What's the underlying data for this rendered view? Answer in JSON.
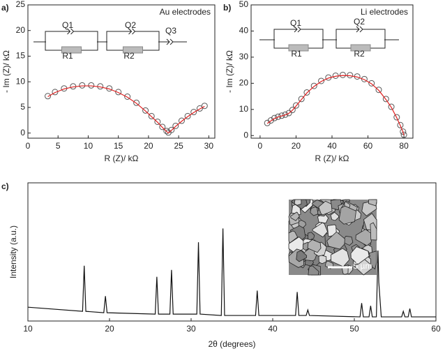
{
  "chart_data": [
    {
      "type": "scatter",
      "panel_label": "a)",
      "annotation": "Au electrodes",
      "xlabel": "R (Z)/ kΩ",
      "ylabel": "- Im (Z)/ kΩ",
      "xlim": [
        0,
        31
      ],
      "ylim": [
        -1,
        25
      ],
      "xticks": [
        0,
        5,
        10,
        15,
        20,
        25,
        30
      ],
      "yticks": [
        0,
        5,
        10,
        15,
        20,
        25
      ],
      "circuit": [
        "Q1",
        "Q2",
        "Q3",
        "R1",
        "R2"
      ],
      "series": [
        {
          "marker": "open-circle",
          "color": "#555555",
          "x": [
            3.3,
            4.5,
            6,
            7.5,
            9,
            10.5,
            12,
            13.5,
            15,
            16.5,
            18,
            19.5,
            20.5,
            21.5,
            22.3,
            23,
            23.3,
            23.8,
            24.5,
            25.5,
            26.5,
            27.5,
            28.5,
            29.3
          ],
          "values": [
            7.2,
            8.0,
            8.7,
            9.1,
            9.3,
            9.3,
            9.1,
            8.7,
            8.0,
            7.1,
            5.9,
            4.4,
            3.3,
            2.2,
            1.2,
            0.4,
            0.1,
            0.6,
            1.4,
            2.4,
            3.3,
            4.1,
            4.8,
            5.3
          ]
        },
        {
          "marker": "line",
          "color": "#e02020",
          "x": [
            3.3,
            4.5,
            6,
            7.5,
            9,
            10.5,
            12,
            13.5,
            15,
            16.5,
            18,
            19.5,
            20.5,
            21.5,
            22.3,
            23,
            23.3,
            23.8,
            24.5,
            25.5,
            26.5,
            27.5,
            28.5,
            29.3
          ],
          "values": [
            7.1,
            7.9,
            8.6,
            9.0,
            9.2,
            9.2,
            9.0,
            8.6,
            7.9,
            7.0,
            5.8,
            4.3,
            3.2,
            2.1,
            1.1,
            0.3,
            0.0,
            0.5,
            1.3,
            2.3,
            3.2,
            4.0,
            4.7,
            5.2
          ]
        }
      ]
    },
    {
      "type": "scatter",
      "panel_label": "b)",
      "annotation": "Li electrodes",
      "xlabel": "R (Z)/ kΩ",
      "ylabel": "- Im (Z)/ kΩ",
      "xlim": [
        -5,
        85
      ],
      "ylim": [
        -1,
        50
      ],
      "xticks": [
        0,
        20,
        40,
        60,
        80
      ],
      "yticks": [
        0,
        10,
        20,
        30,
        40,
        50
      ],
      "circuit": [
        "Q1",
        "Q2",
        "R1",
        "R2"
      ],
      "series": [
        {
          "marker": "open-circle",
          "color": "#555555",
          "x": [
            4,
            6,
            8,
            10,
            12,
            14,
            16,
            18,
            20,
            23,
            26,
            30,
            34,
            38,
            42,
            46,
            50,
            54,
            58,
            62,
            66,
            70,
            73,
            76,
            78,
            79.5,
            80
          ],
          "values": [
            4.8,
            5.8,
            6.7,
            7.2,
            7.6,
            8.0,
            8.6,
            9.8,
            11.5,
            14,
            16.5,
            19,
            20.9,
            22.2,
            22.9,
            23.2,
            23.1,
            22.6,
            21.6,
            20,
            17.5,
            14,
            11,
            7,
            4,
            1.5,
            0.3
          ]
        },
        {
          "marker": "line",
          "color": "#e02020",
          "x": [
            4,
            6,
            8,
            10,
            12,
            14,
            16,
            18,
            20,
            23,
            26,
            30,
            34,
            38,
            42,
            46,
            50,
            54,
            58,
            62,
            66,
            70,
            73,
            76,
            78,
            79.5,
            80
          ],
          "values": [
            4.6,
            5.6,
            6.5,
            7.1,
            7.5,
            7.9,
            8.5,
            9.7,
            11.3,
            13.8,
            16.3,
            18.8,
            20.7,
            22.0,
            22.7,
            23.0,
            22.9,
            22.4,
            21.4,
            19.8,
            17.3,
            13.8,
            10.8,
            6.8,
            3.8,
            1.3,
            0.1
          ]
        }
      ]
    },
    {
      "type": "line",
      "panel_label": "c)",
      "xlabel": "2θ (degrees)",
      "ylabel": "Intensity (a.u.)",
      "inset_label": "5 µm",
      "xlim": [
        10,
        60
      ],
      "ylim": [
        0,
        100
      ],
      "xticks": [
        10,
        20,
        30,
        40,
        50,
        60
      ],
      "series": [
        {
          "color": "#111111",
          "x": [
            10,
            16.7,
            16.9,
            17.1,
            19.3,
            19.5,
            19.7,
            25.6,
            25.8,
            26.0,
            27.4,
            27.6,
            27.8,
            30.7,
            30.9,
            31.1,
            33.7,
            33.9,
            34.1,
            37.9,
            38.1,
            38.3,
            42.8,
            43.0,
            43.2,
            44.1,
            44.3,
            44.5,
            50.7,
            50.9,
            51.1,
            51.8,
            52.0,
            52.2,
            52.7,
            52.9,
            53.0,
            53.3,
            55.8,
            56.0,
            56.2,
            56.6,
            56.8,
            57.0,
            60
          ],
          "values": [
            10,
            7,
            40,
            7,
            6,
            18,
            6,
            5,
            32,
            5,
            5,
            37,
            5,
            5,
            57,
            5,
            4,
            67,
            4,
            4,
            22,
            4,
            4,
            21,
            4,
            4,
            8,
            4,
            3,
            13,
            3,
            3,
            11,
            3,
            3,
            51,
            28,
            3,
            3,
            7,
            3,
            3,
            9,
            3,
            3
          ]
        }
      ]
    }
  ]
}
